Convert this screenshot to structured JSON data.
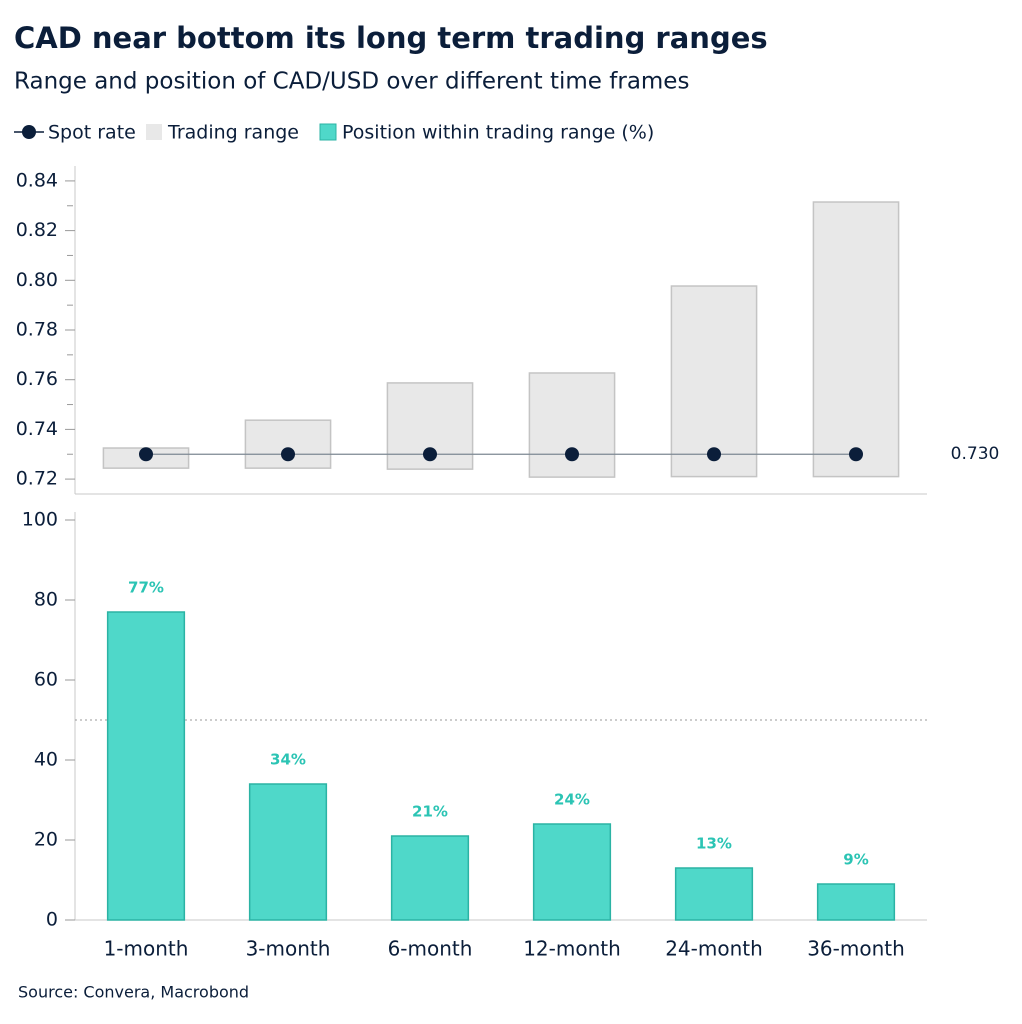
{
  "title": "CAD near bottom its long term trading ranges",
  "subtitle": "Range and position of CAD/USD over different time frames",
  "source": "Source: Convera, Macrobond",
  "chart_data": [
    {
      "type": "range",
      "series": [
        {
          "name": "Spot rate",
          "color": "#0b1e3a",
          "line_color": "#7d8893",
          "values": [
            0.73,
            0.73,
            0.73,
            0.73,
            0.73,
            0.73
          ],
          "value_labels": [
            null,
            null,
            null,
            null,
            null,
            "0.730"
          ]
        },
        {
          "name": "Trading range",
          "color": "#e8e8e8",
          "low": [
            0.7244,
            0.7244,
            0.724,
            0.7208,
            0.721,
            0.721
          ],
          "high": [
            0.7325,
            0.7437,
            0.7587,
            0.7627,
            0.7977,
            0.8315
          ]
        }
      ],
      "ylim": [
        0.714,
        0.846
      ],
      "yticks": [
        {
          "value": 0.72,
          "label": "0.72"
        },
        {
          "value": 0.74,
          "label": "0.74"
        },
        {
          "value": 0.76,
          "label": "0.76"
        },
        {
          "value": 0.78,
          "label": "0.78"
        },
        {
          "value": 0.8,
          "label": "0.80"
        },
        {
          "value": 0.82,
          "label": "0.82"
        },
        {
          "value": 0.84,
          "label": "0.84"
        }
      ],
      "minor_yticks": [
        0.73,
        0.75,
        0.77,
        0.79,
        0.81,
        0.83
      ]
    },
    {
      "type": "bar",
      "categories": [
        "1-month",
        "3-month",
        "6-month",
        "12-month",
        "24-month",
        "36-month"
      ],
      "series": [
        {
          "name": "Position within trading range (%)",
          "color": "#4fd8c9",
          "values": [
            77,
            34,
            21,
            24,
            13,
            9
          ],
          "value_labels": [
            "77%",
            "34%",
            "21%",
            "24%",
            "13%",
            "9%"
          ]
        }
      ],
      "ylim": [
        0,
        102
      ],
      "yticks": [
        0,
        20,
        40,
        60,
        80,
        100
      ],
      "hline": 50
    }
  ]
}
